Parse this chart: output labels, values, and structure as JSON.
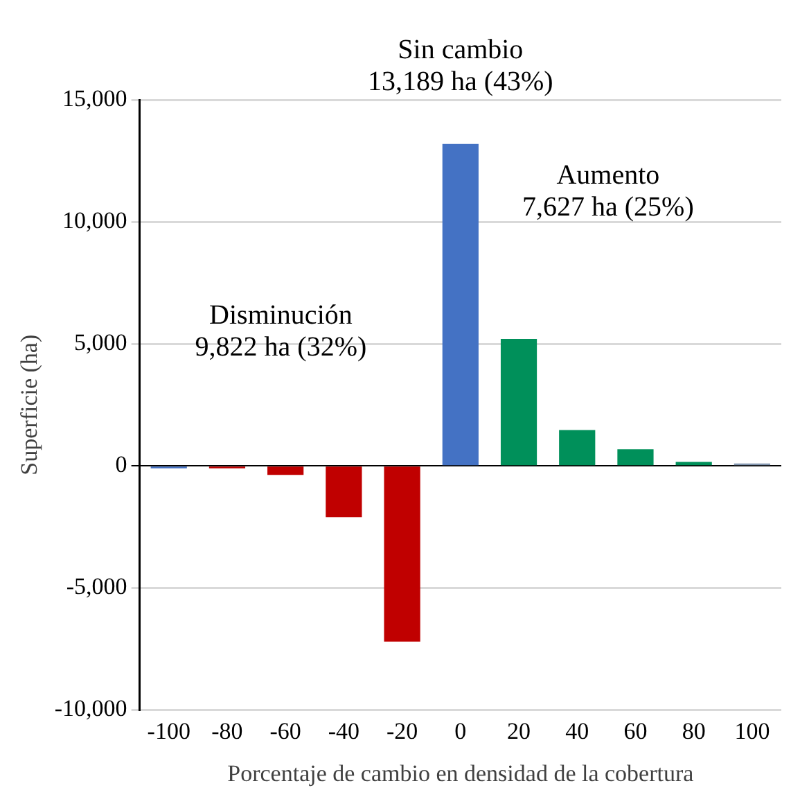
{
  "chart_data": {
    "type": "bar",
    "xlabel": "Porcentaje de cambio en densidad de la cobertura",
    "ylabel": "Superficie (ha)",
    "categories": [
      "-100",
      "-80",
      "-60",
      "-40",
      "-20",
      "0",
      "20",
      "40",
      "60",
      "80",
      "100"
    ],
    "values": [
      -100,
      -100,
      -370,
      -2100,
      -7200,
      13189,
      5200,
      1470,
      680,
      160,
      100
    ],
    "colors": [
      "#4472c4",
      "#c00000",
      "#c00000",
      "#c00000",
      "#c00000",
      "#4472c4",
      "#00905a",
      "#00905a",
      "#00905a",
      "#00905a",
      "#8497b0"
    ],
    "ylim": [
      -10000,
      15000
    ],
    "yticks": [
      {
        "value": -10000,
        "label": "-10,000"
      },
      {
        "value": -5000,
        "label": "-5,000"
      },
      0,
      {
        "value": 5000,
        "label": "5,000"
      },
      {
        "value": 10000,
        "label": "10,000"
      },
      {
        "value": 15000,
        "label": "15,000"
      }
    ],
    "grid": "y",
    "legend": false,
    "annotations": [
      "Sin cambio\n13,189 ha (43%)",
      "Disminución\n9,822 ha (32%)",
      "Aumento\n7,627 ha (25%)"
    ]
  }
}
